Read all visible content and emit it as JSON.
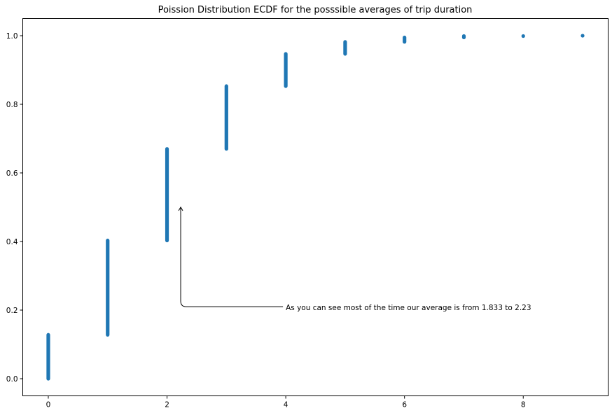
{
  "chart_data": {
    "type": "scatter",
    "title": "Poission Distribution ECDF for the posssible averages of trip duration",
    "xlabel": "",
    "ylabel": "",
    "xlim": [
      -0.43,
      9.43
    ],
    "ylim": [
      -0.05,
      1.05
    ],
    "x_ticks": [
      0,
      2,
      4,
      6,
      8
    ],
    "y_ticks": [
      0.0,
      0.2,
      0.4,
      0.6,
      0.8,
      1.0
    ],
    "grid": false,
    "marker_color": "#1f77b4",
    "series": [
      {
        "points": [
          {
            "x": 0,
            "y_min": 0.0,
            "y_max": 0.128
          },
          {
            "x": 1,
            "y_min": 0.128,
            "y_max": 0.403
          },
          {
            "x": 2,
            "y_min": 0.403,
            "y_max": 0.67
          },
          {
            "x": 3,
            "y_min": 0.67,
            "y_max": 0.853
          },
          {
            "x": 4,
            "y_min": 0.853,
            "y_max": 0.947
          },
          {
            "x": 5,
            "y_min": 0.947,
            "y_max": 0.982
          },
          {
            "x": 6,
            "y_min": 0.982,
            "y_max": 0.995
          },
          {
            "x": 7,
            "y_min": 0.995,
            "y_max": 0.999
          },
          {
            "x": 8,
            "y_min": 0.999,
            "y_max": 1.0
          },
          {
            "x": 9,
            "y_min": 1.0,
            "y_max": 1.0
          }
        ]
      }
    ],
    "annotation": {
      "text": "As you can see most of the time our average is from 1.833 to 2.23",
      "text_x": 4.0,
      "text_y": 0.208,
      "arrow_x": 2.23,
      "arrow_y": 0.5
    }
  }
}
